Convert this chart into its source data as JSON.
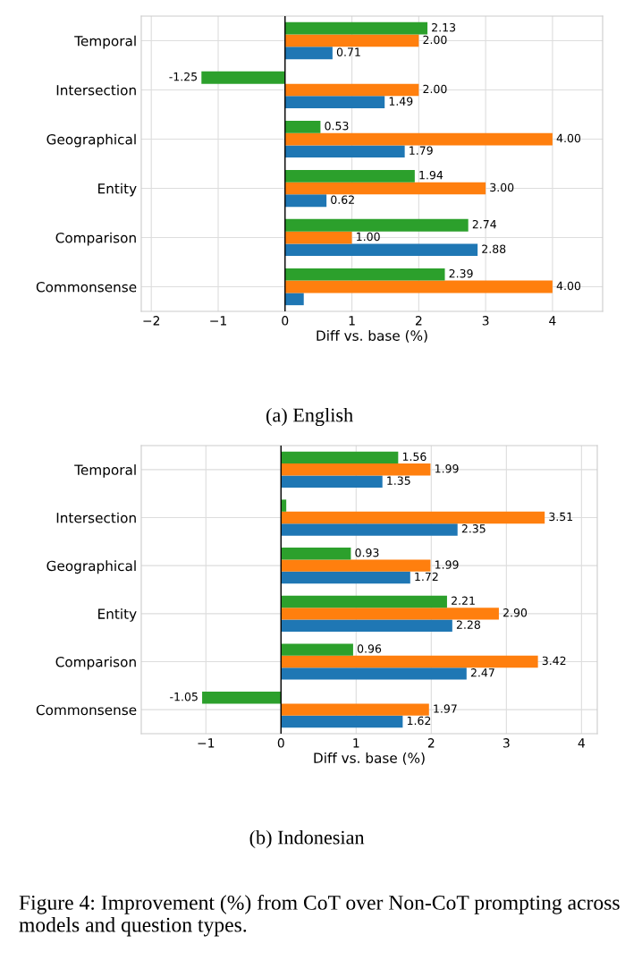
{
  "chart_data": [
    {
      "type": "bar",
      "orientation": "horizontal",
      "title": "(a) English",
      "xlabel": "Diff vs. base (%)",
      "categories": [
        "Temporal",
        "Intersection",
        "Geographical",
        "Entity",
        "Comparison",
        "Commonsense"
      ],
      "series": [
        {
          "color": "#1f77b4",
          "values": [
            0.71,
            1.49,
            1.79,
            0.62,
            2.88,
            0.28
          ],
          "value_labels": [
            "0.71",
            "1.49",
            "1.79",
            "0.62",
            "2.88",
            null
          ]
        },
        {
          "color": "#ff7f0e",
          "values": [
            2.0,
            2.0,
            4.0,
            3.0,
            1.0,
            4.0
          ],
          "value_labels": [
            "2.00",
            "2.00",
            "4.00",
            "3.00",
            "1.00",
            "4.00"
          ]
        },
        {
          "color": "#2ca02c",
          "values": [
            2.13,
            -1.25,
            0.53,
            1.94,
            2.74,
            2.39
          ],
          "value_labels": [
            "2.13",
            "-1.25",
            "0.53",
            "1.94",
            "2.74",
            "2.39"
          ]
        }
      ],
      "xlim": [
        -2.15,
        4.75
      ],
      "xticks": [
        -2,
        -1,
        0,
        1,
        2,
        3,
        4
      ],
      "ref_lines": [
        {
          "axis": "x",
          "value": 0,
          "color": "#000000"
        }
      ],
      "grid": true
    },
    {
      "type": "bar",
      "orientation": "horizontal",
      "title": "(b) Indonesian",
      "xlabel": "Diff vs. base (%)",
      "categories": [
        "Temporal",
        "Intersection",
        "Geographical",
        "Entity",
        "Comparison",
        "Commonsense"
      ],
      "series": [
        {
          "color": "#1f77b4",
          "values": [
            1.35,
            2.35,
            1.72,
            2.28,
            2.47,
            1.62
          ],
          "value_labels": [
            "1.35",
            "2.35",
            "1.72",
            "2.28",
            "2.47",
            "1.62"
          ]
        },
        {
          "color": "#ff7f0e",
          "values": [
            1.99,
            3.51,
            1.99,
            2.9,
            3.42,
            1.97
          ],
          "value_labels": [
            "1.99",
            "3.51",
            "1.99",
            "2.90",
            "3.42",
            "1.97"
          ]
        },
        {
          "color": "#2ca02c",
          "values": [
            1.56,
            0.07,
            0.93,
            2.21,
            0.96,
            -1.05
          ],
          "value_labels": [
            "1.56",
            null,
            "0.93",
            "2.21",
            "0.96",
            "-1.05"
          ]
        }
      ],
      "xlim": [
        -1.86,
        4.21
      ],
      "xticks": [
        -1,
        0,
        1,
        2,
        3,
        4
      ],
      "ref_lines": [
        {
          "axis": "x",
          "value": 0,
          "color": "#000000"
        }
      ],
      "grid": true,
      "annotations": [
        "Figure 4: Improvement (%) from CoT over Non-CoT prompting across models and question types."
      ]
    }
  ]
}
